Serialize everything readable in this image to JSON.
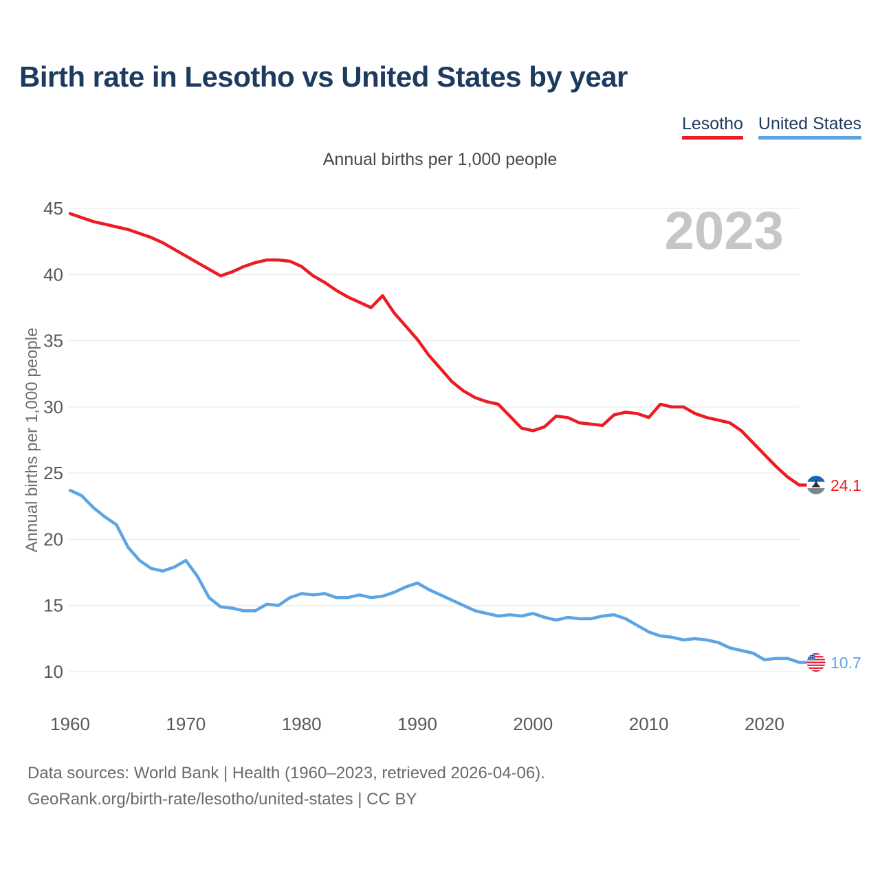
{
  "title": "Birth rate in Lesotho vs United States by year",
  "subtitle": "Annual births per 1,000 people",
  "watermark_year": "2023",
  "legend": [
    {
      "label": "Lesotho",
      "color": "#ec1c24"
    },
    {
      "label": "United States",
      "color": "#5da4e4"
    }
  ],
  "footer": {
    "line1": "Data sources: World Bank | Health (1960–2023, retrieved 2026-04-06).",
    "line2": "GeoRank.org/birth-rate/lesotho/united-states | CC BY"
  },
  "chart_data": {
    "type": "line",
    "title": "Birth rate in Lesotho vs United States by year",
    "subtitle": "Annual births per 1,000 people",
    "ylabel": "Annual births per 1,000 people",
    "xlabel": "",
    "grid": true,
    "legend_position": "top-right",
    "xlim": [
      1960,
      2023
    ],
    "ylim": [
      8.5,
      46
    ],
    "xticks": [
      1960,
      1970,
      1980,
      1990,
      2000,
      2010,
      2020
    ],
    "yticks": [
      10,
      15,
      20,
      25,
      30,
      35,
      40,
      45
    ],
    "x": [
      1960,
      1961,
      1962,
      1963,
      1964,
      1965,
      1966,
      1967,
      1968,
      1969,
      1970,
      1971,
      1972,
      1973,
      1974,
      1975,
      1976,
      1977,
      1978,
      1979,
      1980,
      1981,
      1982,
      1983,
      1984,
      1985,
      1986,
      1987,
      1988,
      1989,
      1990,
      1991,
      1992,
      1993,
      1994,
      1995,
      1996,
      1997,
      1998,
      1999,
      2000,
      2001,
      2002,
      2003,
      2004,
      2005,
      2006,
      2007,
      2008,
      2009,
      2010,
      2011,
      2012,
      2013,
      2014,
      2015,
      2016,
      2017,
      2018,
      2019,
      2020,
      2021,
      2022,
      2023
    ],
    "series": [
      {
        "name": "Lesotho",
        "color": "#ec1c24",
        "end_label": "24.1",
        "flag": "lesotho-flag-icon",
        "values": [
          44.6,
          44.3,
          44.0,
          43.8,
          43.6,
          43.4,
          43.1,
          42.8,
          42.4,
          41.9,
          41.4,
          40.9,
          40.4,
          39.9,
          40.2,
          40.6,
          40.9,
          41.1,
          41.1,
          41.0,
          40.6,
          39.9,
          39.4,
          38.8,
          38.3,
          37.9,
          37.5,
          38.4,
          37.1,
          36.1,
          35.1,
          33.9,
          32.9,
          31.9,
          31.2,
          30.7,
          30.4,
          30.2,
          29.3,
          28.4,
          28.2,
          28.5,
          29.3,
          29.2,
          28.8,
          28.7,
          28.6,
          29.4,
          29.6,
          29.5,
          29.2,
          30.2,
          30.0,
          30.0,
          29.5,
          29.2,
          29.0,
          28.8,
          28.2,
          27.3,
          26.4,
          25.5,
          24.7,
          24.1
        ]
      },
      {
        "name": "United States",
        "color": "#5da4e4",
        "end_label": "10.7",
        "flag": "us-flag-icon",
        "values": [
          23.7,
          23.3,
          22.4,
          21.7,
          21.1,
          19.4,
          18.4,
          17.8,
          17.6,
          17.9,
          18.4,
          17.2,
          15.6,
          14.9,
          14.8,
          14.6,
          14.6,
          15.1,
          15.0,
          15.6,
          15.9,
          15.8,
          15.9,
          15.6,
          15.6,
          15.8,
          15.6,
          15.7,
          16.0,
          16.4,
          16.7,
          16.2,
          15.8,
          15.4,
          15.0,
          14.6,
          14.4,
          14.2,
          14.3,
          14.2,
          14.4,
          14.1,
          13.9,
          14.1,
          14.0,
          14.0,
          14.2,
          14.3,
          14.0,
          13.5,
          13.0,
          12.7,
          12.6,
          12.4,
          12.5,
          12.4,
          12.2,
          11.8,
          11.6,
          11.4,
          10.9,
          11.0,
          11.0,
          10.7
        ]
      }
    ],
    "flag_colors": {
      "lesotho": {
        "top": "#1565c0",
        "middle": "#ffffff",
        "bottom": "#7a858c",
        "hat": "#2b2b2b"
      },
      "us": {
        "stripe_red": "#e0162b",
        "white": "#ffffff",
        "canton": "#1e50a0"
      }
    },
    "style": {
      "grid_color": "#e9e9e9",
      "tick_color": "#55595e",
      "watermark_color": "#c6c6c6"
    }
  }
}
